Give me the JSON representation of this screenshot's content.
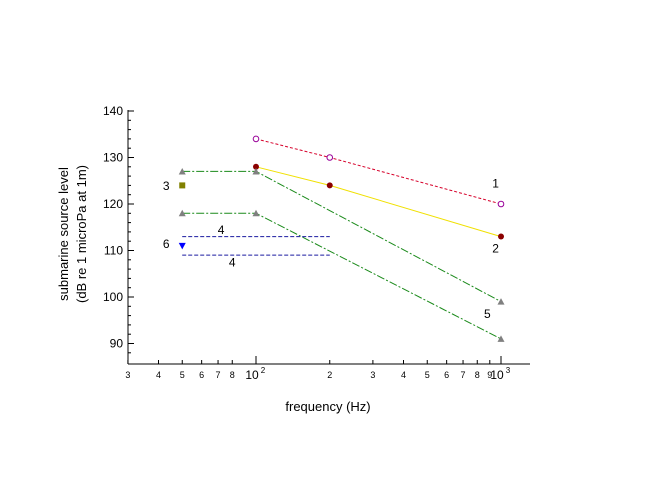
{
  "chart_data": {
    "type": "line",
    "xlabel": "frequency (Hz)",
    "ylabel": [
      "submarine source level",
      "(dB re 1 microPa at 1m)"
    ],
    "xscale": "log",
    "xlim": [
      30,
      1300
    ],
    "ylim": [
      86,
      140
    ],
    "grid": false,
    "y_ticks": [
      90,
      100,
      110,
      120,
      130,
      140
    ],
    "x_minor_ticks": [
      30,
      40,
      50,
      60,
      70,
      80,
      200,
      300,
      400,
      500,
      600,
      700,
      800,
      900
    ],
    "x_minor_labels": [
      {
        "x": 30,
        "label": "3"
      },
      {
        "x": 40,
        "label": "4"
      },
      {
        "x": 50,
        "label": "5"
      },
      {
        "x": 60,
        "label": "6"
      },
      {
        "x": 70,
        "label": "7"
      },
      {
        "x": 80,
        "label": "8"
      },
      {
        "x": 200,
        "label": "2"
      },
      {
        "x": 300,
        "label": "3"
      },
      {
        "x": 400,
        "label": "4"
      },
      {
        "x": 500,
        "label": "5"
      },
      {
        "x": 600,
        "label": "6"
      },
      {
        "x": 700,
        "label": "7"
      },
      {
        "x": 800,
        "label": "8"
      },
      {
        "x": 900,
        "label": "9"
      }
    ],
    "x_major_labels": [
      {
        "x": 100,
        "base": "10",
        "exp": "2"
      },
      {
        "x": 1000,
        "base": "10",
        "exp": "3"
      }
    ],
    "series": [
      {
        "id": "curve-1",
        "color": "#d6002a",
        "dash": "3,2",
        "marker": "open-circle",
        "marker_color": "#990099",
        "x": [
          100,
          200,
          1000
        ],
        "y": [
          134,
          130,
          120
        ]
      },
      {
        "id": "curve-2",
        "color": "#f0e000",
        "dash": "",
        "marker": "filled-circle",
        "marker_color": "#8b0000",
        "x": [
          100,
          200,
          1000
        ],
        "y": [
          128,
          124,
          113
        ]
      },
      {
        "id": "curve-5-upper",
        "color": "#1a8a1a",
        "dash": "8,2,2,2",
        "marker": "triangle",
        "marker_color": "#808080",
        "x": [
          50,
          100,
          1000
        ],
        "y": [
          127,
          127,
          99
        ]
      },
      {
        "id": "curve-5-lower",
        "color": "#1a8a1a",
        "dash": "8,2,2,2",
        "marker": "triangle",
        "marker_color": "#808080",
        "x": [
          50,
          100,
          1000
        ],
        "y": [
          118,
          118,
          91
        ]
      },
      {
        "id": "curve-4-upper",
        "color": "#1a1aa0",
        "dash": "4,2",
        "marker": "none",
        "marker_color": "",
        "x": [
          50,
          200
        ],
        "y": [
          113,
          113
        ]
      },
      {
        "id": "curve-4-lower",
        "color": "#1a1aa0",
        "dash": "4,2",
        "marker": "none",
        "marker_color": "",
        "x": [
          50,
          200
        ],
        "y": [
          109,
          109
        ]
      }
    ],
    "points": [
      {
        "id": "point-3",
        "x": 50,
        "y": 124,
        "marker": "square",
        "color": "#808000"
      },
      {
        "id": "point-6",
        "x": 50,
        "y": 111,
        "marker": "down-triangle",
        "color": "#0000ff"
      }
    ],
    "annotations": [
      {
        "id": "label-1",
        "text": "1",
        "x": 950,
        "y": 124.5
      },
      {
        "id": "label-2",
        "text": "2",
        "x": 950,
        "y": 110.5
      },
      {
        "id": "label-3",
        "text": "3",
        "x": 43,
        "y": 124
      },
      {
        "id": "label-4-top",
        "text": "4",
        "x": 72,
        "y": 114.5
      },
      {
        "id": "label-4-bottom",
        "text": "4",
        "x": 80,
        "y": 107.5
      },
      {
        "id": "label-5",
        "text": "5",
        "x": 880,
        "y": 96.5
      },
      {
        "id": "label-6",
        "text": "6",
        "x": 43,
        "y": 111.5
      }
    ]
  }
}
